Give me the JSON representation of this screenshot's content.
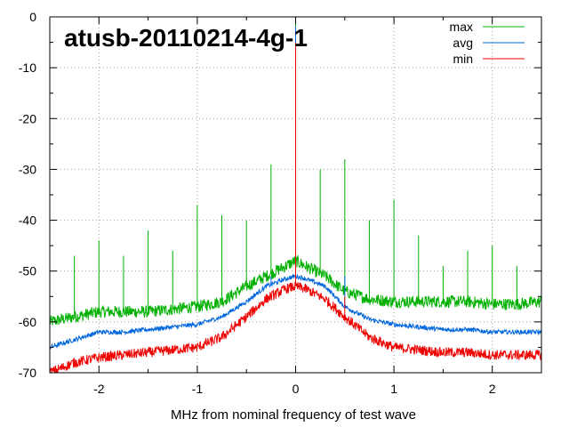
{
  "chart_data": {
    "type": "line",
    "title": "atusb-20110214-4g-1",
    "xlabel": "MHz from nominal frequency of test wave",
    "ylabel": "",
    "xlim": [
      -2.5,
      2.5
    ],
    "ylim": [
      -70,
      0
    ],
    "xticks": [
      -2,
      -1,
      0,
      1,
      2
    ],
    "xtick_labels": [
      "-2",
      "-1",
      "0",
      "1",
      "2"
    ],
    "yticks": [
      0,
      -10,
      -20,
      -30,
      -40,
      -50,
      -60,
      -70
    ],
    "ytick_labels": [
      "0",
      "-10",
      "-20",
      "-30",
      "-40",
      "-50",
      "-60",
      "-70"
    ],
    "grid": true,
    "legend_position": "top-right",
    "series": [
      {
        "name": "max",
        "color": "#00b000",
        "x": [
          -2.5,
          -2.25,
          -2.0,
          -1.75,
          -1.5,
          -1.25,
          -1.0,
          -0.75,
          -0.5,
          -0.3,
          -0.1,
          0.0,
          0.1,
          0.3,
          0.5,
          0.75,
          1.0,
          1.25,
          1.5,
          1.75,
          2.0,
          2.25,
          2.5
        ],
        "y": [
          -60,
          -59,
          -58,
          -58,
          -58,
          -57.5,
          -57,
          -56,
          -53,
          -51,
          -49,
          -48,
          -49,
          -51,
          -54,
          -55.5,
          -56,
          -56,
          -56,
          -56,
          -56.5,
          -56.5,
          -56
        ]
      },
      {
        "name": "avg",
        "color": "#0066dd",
        "x": [
          -2.5,
          -2.25,
          -2.0,
          -1.75,
          -1.5,
          -1.25,
          -1.0,
          -0.75,
          -0.5,
          -0.3,
          -0.1,
          0.0,
          0.1,
          0.3,
          0.5,
          0.75,
          1.0,
          1.25,
          1.5,
          1.75,
          2.0,
          2.25,
          2.5
        ],
        "y": [
          -65,
          -63.5,
          -62,
          -62,
          -61.5,
          -61,
          -60.5,
          -59,
          -56,
          -53,
          -51.5,
          -51,
          -51.5,
          -53,
          -57,
          -59.5,
          -60.5,
          -61,
          -61.5,
          -61.5,
          -62,
          -62,
          -62
        ]
      },
      {
        "name": "min",
        "color": "#ee0000",
        "x": [
          -2.5,
          -2.25,
          -2.0,
          -1.75,
          -1.5,
          -1.25,
          -1.0,
          -0.75,
          -0.5,
          -0.3,
          -0.1,
          0.0,
          0.1,
          0.3,
          0.5,
          0.75,
          1.0,
          1.25,
          1.5,
          1.75,
          2.0,
          2.25,
          2.5
        ],
        "y": [
          -70,
          -68,
          -67,
          -66.5,
          -66,
          -65.5,
          -65,
          -63,
          -59,
          -55.5,
          -53.5,
          -53,
          -53.5,
          -55.5,
          -59,
          -63,
          -65,
          -65.5,
          -66,
          -66,
          -66.5,
          -66.5,
          -66.5
        ]
      }
    ],
    "spikes": [
      {
        "series": "max",
        "x": 0.0,
        "y": 0
      },
      {
        "series": "avg",
        "x": 0.0,
        "y": -2
      },
      {
        "series": "min",
        "x": 0.0,
        "y": -5
      },
      {
        "series": "max",
        "x": -0.25,
        "y": -29
      },
      {
        "series": "max",
        "x": 0.25,
        "y": -30
      },
      {
        "series": "max",
        "x": 0.5,
        "y": -28
      },
      {
        "series": "max",
        "x": 1.0,
        "y": -36
      },
      {
        "series": "max",
        "x": -1.0,
        "y": -37
      },
      {
        "series": "max",
        "x": -0.5,
        "y": -40
      },
      {
        "series": "max",
        "x": -0.75,
        "y": -39
      },
      {
        "series": "max",
        "x": 0.75,
        "y": -40
      },
      {
        "series": "max",
        "x": -1.5,
        "y": -42
      },
      {
        "series": "max",
        "x": 1.25,
        "y": -43
      },
      {
        "series": "max",
        "x": -1.25,
        "y": -46
      },
      {
        "series": "max",
        "x": -2.0,
        "y": -44
      },
      {
        "series": "max",
        "x": 2.0,
        "y": -45
      },
      {
        "series": "max",
        "x": 1.75,
        "y": -46
      },
      {
        "series": "max",
        "x": -1.75,
        "y": -47
      },
      {
        "series": "max",
        "x": 1.5,
        "y": -49
      },
      {
        "series": "max",
        "x": 2.25,
        "y": -49
      },
      {
        "series": "max",
        "x": -2.25,
        "y": -47
      },
      {
        "series": "max",
        "x": 2.5,
        "y": -49
      },
      {
        "series": "avg",
        "x": 0.5,
        "y": -51
      },
      {
        "series": "avg",
        "x": -0.25,
        "y": -51
      },
      {
        "series": "min",
        "x": 0.5,
        "y": -55
      }
    ]
  }
}
